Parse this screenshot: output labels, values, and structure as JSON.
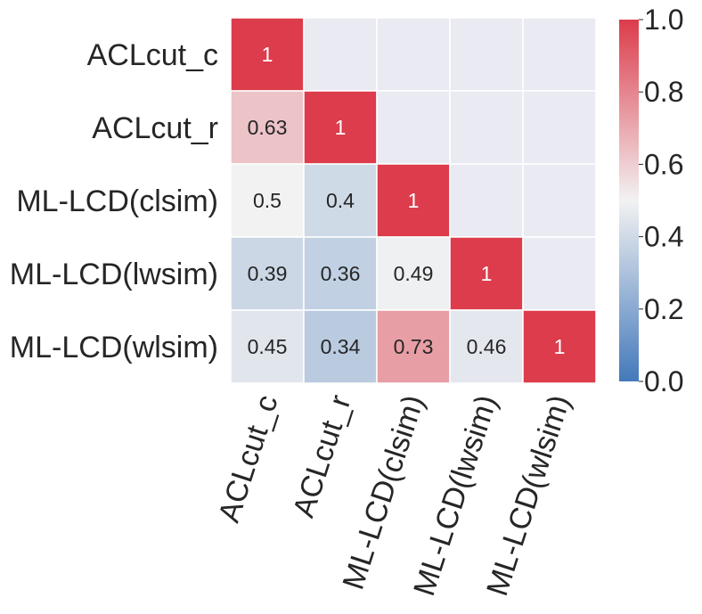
{
  "chart_data": {
    "type": "heatmap",
    "title": "",
    "xlabel": "",
    "ylabel": "",
    "rows": [
      "ACLcut_c",
      "ACLcut_r",
      "ML-LCD(clsim)",
      "ML-LCD(lwsim)",
      "ML-LCD(wlsim)"
    ],
    "columns": [
      "ACLcut_c",
      "ACLcut_r",
      "ML-LCD(clsim)",
      "ML-LCD(lwsim)",
      "ML-LCD(wlsim)"
    ],
    "values": [
      [
        1,
        null,
        null,
        null,
        null
      ],
      [
        0.63,
        1,
        null,
        null,
        null
      ],
      [
        0.5,
        0.4,
        1,
        null,
        null
      ],
      [
        0.39,
        0.36,
        0.49,
        1,
        null
      ],
      [
        0.45,
        0.34,
        0.73,
        0.46,
        1
      ]
    ],
    "annotations": [
      [
        "1",
        "",
        "",
        "",
        ""
      ],
      [
        "0.63",
        "1",
        "",
        "",
        ""
      ],
      [
        "0.5",
        "0.4",
        "1",
        "",
        ""
      ],
      [
        "0.39",
        "0.36",
        "0.49",
        "1",
        ""
      ],
      [
        "0.45",
        "0.34",
        "0.73",
        "0.46",
        "1"
      ]
    ],
    "masked_color": "#eaeaf2",
    "grid_line_color": "#ffffff",
    "colorbar": {
      "vmin": 0.0,
      "vmax": 1.0,
      "ticks": [
        "0.0",
        "0.2",
        "0.4",
        "0.6",
        "0.8",
        "1.0"
      ],
      "low_color": "#4479bb",
      "mid_color": "#f2f2f2",
      "high_color": "#dc3c4b"
    }
  }
}
